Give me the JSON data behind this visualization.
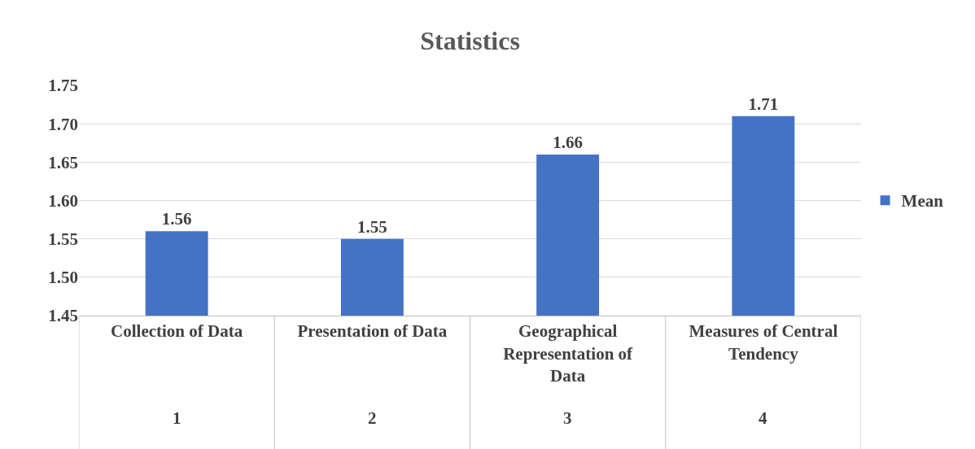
{
  "chart_data": {
    "type": "bar",
    "title": "Statistics",
    "categories": [
      "Collection of Data",
      "Presentation of Data",
      "Geographical Representation of Data",
      "Measures of Central Tendency"
    ],
    "series": [
      {
        "name": "Mean",
        "color": "#4472c4",
        "values": [
          1.56,
          1.55,
          1.66,
          1.71
        ]
      }
    ],
    "data_labels": true,
    "ylim": [
      1.45,
      1.75
    ],
    "yticks": [
      1.45,
      {
        "value": 1.5,
        "label": "1.50"
      },
      1.55,
      {
        "value": 1.6,
        "label": "1.60"
      },
      1.65,
      {
        "value": 1.7,
        "label": "1.70"
      },
      1.75
    ],
    "grid": "y",
    "legend": "right",
    "annotations": [
      "1",
      "2",
      "3",
      "4"
    ]
  }
}
